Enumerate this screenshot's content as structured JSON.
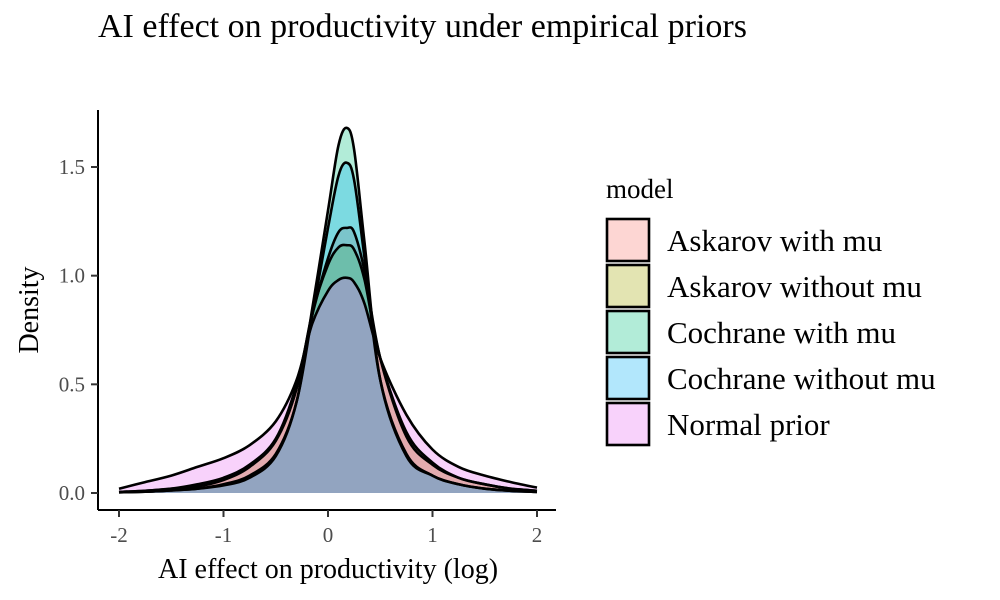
{
  "chart_data": {
    "type": "area",
    "title": "AI effect on productivity under empirical priors",
    "xlabel": "AI effect on productivity (log)",
    "ylabel": "Density",
    "xlim": [
      -2,
      2
    ],
    "ylim": [
      0,
      1.7
    ],
    "xticks": [
      -2,
      -1,
      0,
      1,
      2
    ],
    "xtick_labels": [
      "-2",
      "-1",
      "0",
      "1",
      "2"
    ],
    "yticks": [
      0,
      0.5,
      1,
      1.5
    ],
    "ytick_labels": [
      "0.0",
      "0.5",
      "1.0",
      "1.5"
    ],
    "grid": false,
    "legend_title": "model",
    "legend_position": "right",
    "x": [
      -2,
      -1.75,
      -1.5,
      -1.25,
      -1,
      -0.75,
      -0.5,
      -0.3,
      -0.15,
      0,
      0.1,
      0.18,
      0.25,
      0.35,
      0.5,
      0.75,
      1,
      1.25,
      1.5,
      1.75,
      2
    ],
    "series": [
      {
        "name": "Askarov with mu",
        "color": "#f8766d",
        "values": [
          0.005,
          0.01,
          0.02,
          0.04,
          0.07,
          0.13,
          0.25,
          0.5,
          0.82,
          1.08,
          1.2,
          1.22,
          1.2,
          1.02,
          0.62,
          0.26,
          0.13,
          0.07,
          0.04,
          0.02,
          0.01
        ]
      },
      {
        "name": "Askarov without mu",
        "color": "#a3a500",
        "values": [
          0.005,
          0.01,
          0.02,
          0.03,
          0.06,
          0.12,
          0.24,
          0.48,
          0.83,
          1.05,
          1.13,
          1.14,
          1.12,
          0.98,
          0.62,
          0.28,
          0.14,
          0.07,
          0.04,
          0.02,
          0.01
        ]
      },
      {
        "name": "Cochrane with mu",
        "color": "#00bf7d",
        "values": [
          0.003,
          0.006,
          0.012,
          0.02,
          0.035,
          0.07,
          0.17,
          0.42,
          0.85,
          1.3,
          1.6,
          1.68,
          1.58,
          1.15,
          0.52,
          0.17,
          0.08,
          0.04,
          0.02,
          0.01,
          0.005
        ]
      },
      {
        "name": "Cochrane without mu",
        "color": "#00b0f6",
        "values": [
          0.003,
          0.006,
          0.012,
          0.02,
          0.04,
          0.08,
          0.18,
          0.42,
          0.82,
          1.22,
          1.46,
          1.52,
          1.44,
          1.08,
          0.52,
          0.18,
          0.08,
          0.04,
          0.02,
          0.01,
          0.005
        ]
      },
      {
        "name": "Normal prior",
        "color": "#e76bf3",
        "values": [
          0.02,
          0.05,
          0.08,
          0.12,
          0.16,
          0.22,
          0.33,
          0.52,
          0.78,
          0.93,
          0.98,
          0.99,
          0.97,
          0.87,
          0.62,
          0.36,
          0.2,
          0.12,
          0.08,
          0.05,
          0.025
        ]
      }
    ]
  }
}
